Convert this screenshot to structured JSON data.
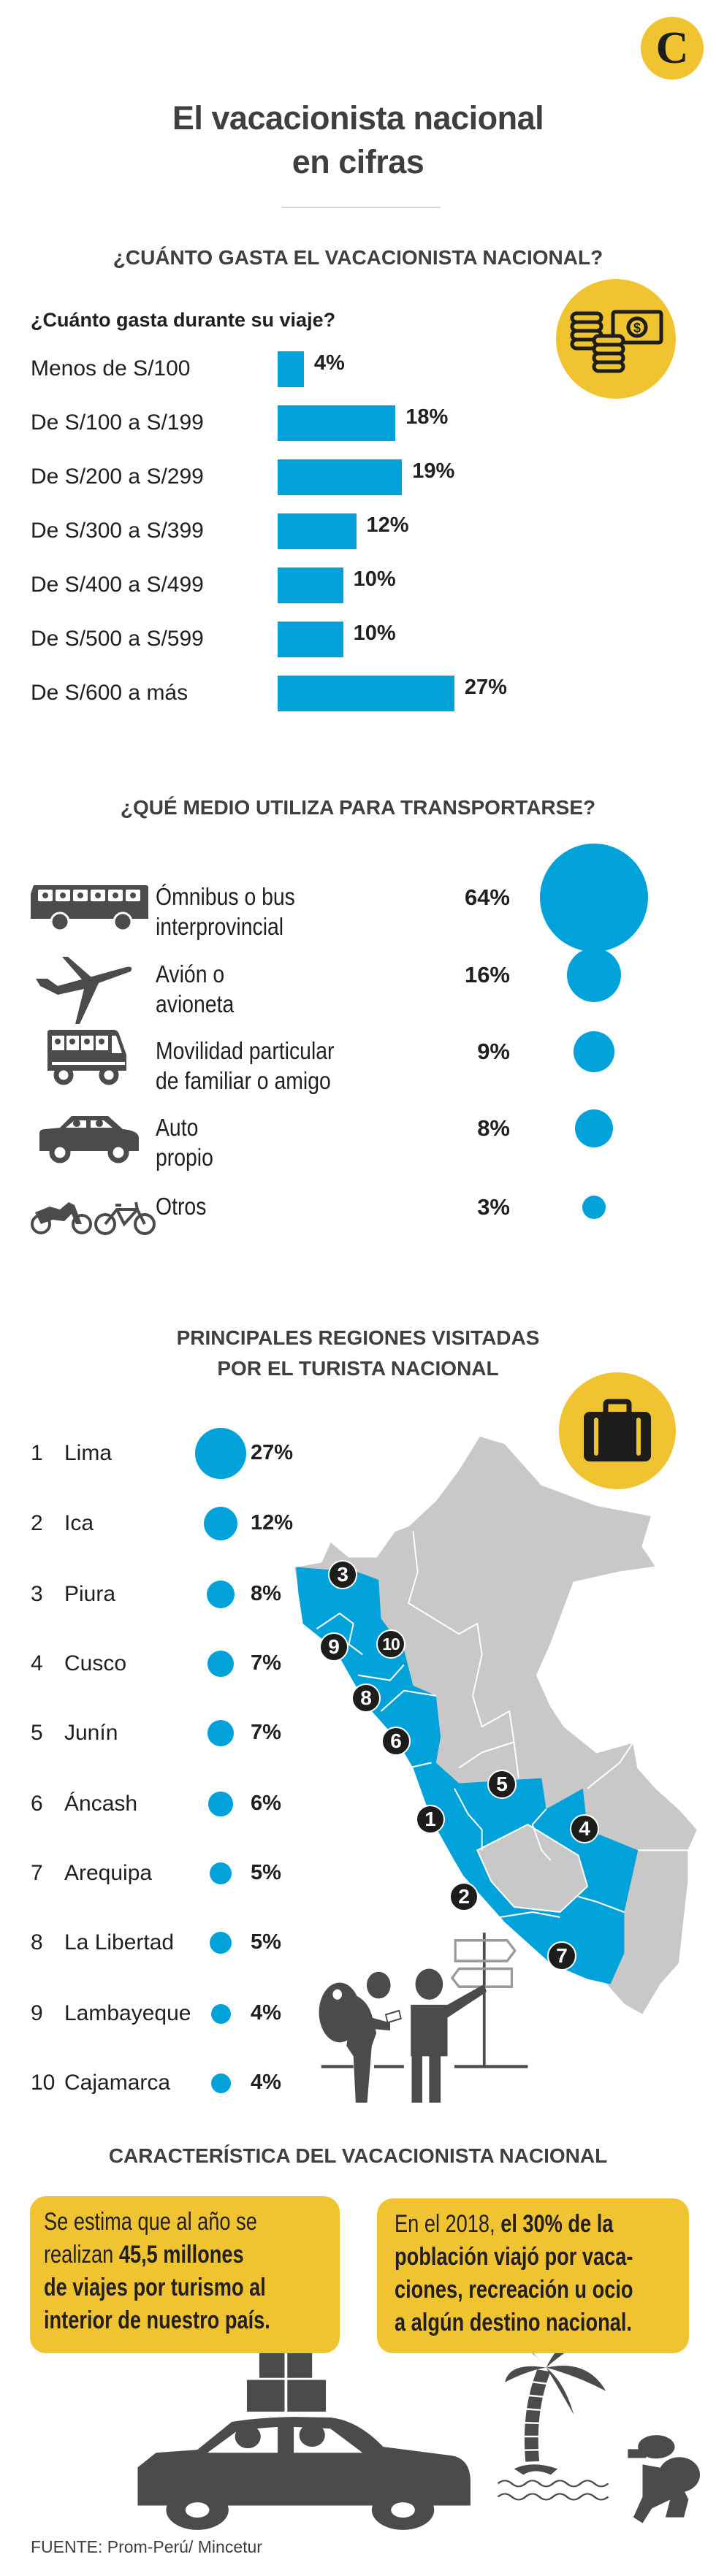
{
  "header": {
    "logo_letter": "C",
    "title_line1": "El vacacionista nacional",
    "title_line2": "en cifras"
  },
  "colors": {
    "accent_blue": "#00a2d9",
    "accent_yellow": "#f0c330",
    "icon_gray": "#4b4b4b",
    "map_gray": "#c8c8c8"
  },
  "spending": {
    "heading": "¿CUÁNTO GASTA EL VACACIONISTA NACIONAL?",
    "icon": "coins-and-bill-icon"
  },
  "transport": {
    "heading": "¿QUÉ MEDIO UTILIZA PARA TRANSPORTARSE?"
  },
  "regions": {
    "heading_line1": "PRINCIPALES REGIONES VISITADAS",
    "heading_line2": "POR EL TURISTA NACIONAL",
    "icon": "suitcase-icon"
  },
  "characteristics": {
    "heading": "CARACTERÍSTICA DEL VACACIONISTA NACIONAL",
    "callouts": [
      {
        "lines": [
          [
            {
              "t": "Se estima que al año se",
              "s": "regular"
            }
          ],
          [
            {
              "t": "realizan ",
              "s": "regular"
            },
            {
              "t": "45,5 millones",
              "s": "bold"
            }
          ],
          [
            {
              "t": "de viajes por turismo al",
              "s": "bold"
            }
          ],
          [
            {
              "t": "interior de nuestro país.",
              "s": "bold"
            }
          ]
        ]
      },
      {
        "lines": [
          [
            {
              "t": "En el 2018, ",
              "s": "regular"
            },
            {
              "t": "el 30% de la",
              "s": "bold"
            }
          ],
          [
            {
              "t": "población",
              "s": "bold"
            },
            {
              "t": " viajó por vaca-",
              "s": "medium"
            }
          ],
          [
            {
              "t": "ciones, recreación u ocio",
              "s": "medium"
            }
          ],
          [
            {
              "t": "a algún destino nacional.",
              "s": "medium"
            }
          ]
        ]
      }
    ]
  },
  "source": "FUENTE: Prom-Perú/ Mincetur",
  "chart_data": [
    {
      "type": "bar",
      "orientation": "horizontal",
      "title": "¿Cuánto gasta durante su viaje?",
      "categories": [
        "Menos de S/100",
        "De S/100 a S/199",
        "De S/200 a S/299",
        "De S/300 a S/399",
        "De S/400 a S/499",
        "De S/500 a S/599",
        "De S/600 a más"
      ],
      "values": [
        4,
        18,
        19,
        12,
        10,
        10,
        27
      ],
      "value_labels": [
        "4%",
        "18%",
        "19%",
        "12%",
        "10%",
        "10%",
        "27%"
      ],
      "unit": "%",
      "xlim": [
        0,
        30
      ]
    },
    {
      "type": "bubble",
      "title": "¿QUÉ MEDIO UTILIZA PARA TRANSPORTARSE?",
      "categories": [
        [
          "Ómnibus o bus",
          "interprovincial"
        ],
        [
          "Avión o",
          "avioneta"
        ],
        [
          "Movilidad particular",
          "de familiar o amigo"
        ],
        [
          "Auto",
          "propio"
        ],
        [
          "Otros"
        ]
      ],
      "icons": [
        "bus-icon",
        "airplane-icon",
        "van-icon",
        "car-icon",
        "motorcycle-bicycle-icon"
      ],
      "values": [
        64,
        16,
        9,
        8,
        3
      ],
      "value_labels": [
        "64%",
        "16%",
        "9%",
        "8%",
        "3%"
      ],
      "unit": "%"
    },
    {
      "type": "bubble",
      "title": "PRINCIPALES REGIONES VISITADAS POR EL TURISTA NACIONAL",
      "ranks": [
        "1",
        "2",
        "3",
        "4",
        "5",
        "6",
        "7",
        "8",
        "9",
        "10"
      ],
      "categories": [
        "Lima",
        "Ica",
        "Piura",
        "Cusco",
        "Junín",
        "Áncash",
        "Arequipa",
        "La Libertad",
        "Lambayeque",
        "Cajamarca"
      ],
      "values": [
        27,
        12,
        8,
        7,
        7,
        6,
        5,
        5,
        4,
        4
      ],
      "value_labels": [
        "27%",
        "12%",
        "8%",
        "7%",
        "7%",
        "6%",
        "5%",
        "5%",
        "4%",
        "4%"
      ],
      "unit": "%",
      "map_markers": [
        "1",
        "2",
        "3",
        "4",
        "5",
        "6",
        "7",
        "8",
        "9",
        "10"
      ]
    }
  ]
}
